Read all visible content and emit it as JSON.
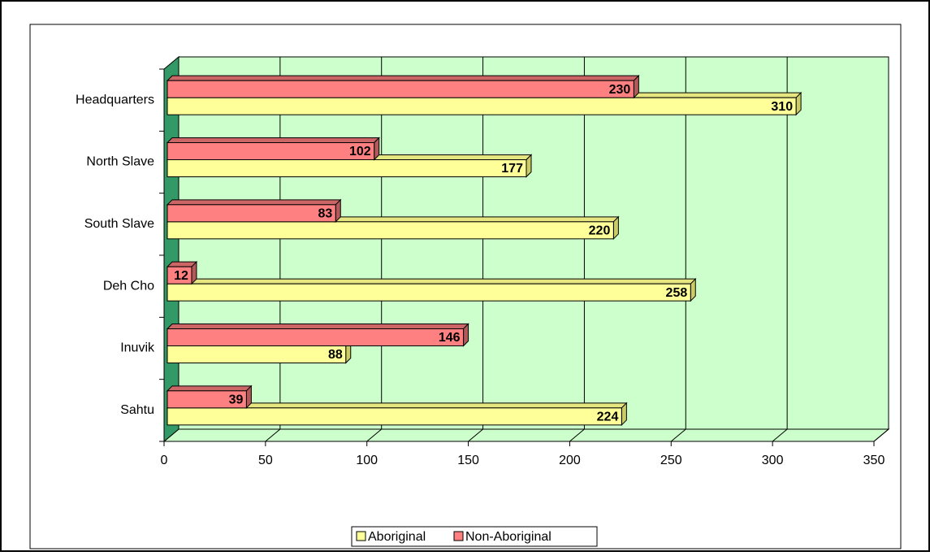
{
  "chart_data": {
    "type": "bar",
    "orientation": "horizontal",
    "categories": [
      "Headquarters",
      "North Slave",
      "South Slave",
      "Deh Cho",
      "Inuvik",
      "Sahtu"
    ],
    "series": [
      {
        "name": "Aboriginal",
        "color": "#ffff99",
        "values": [
          310,
          177,
          220,
          258,
          88,
          224
        ]
      },
      {
        "name": "Non-Aboriginal",
        "color": "#ff8080",
        "values": [
          230,
          102,
          83,
          12,
          146,
          39
        ]
      }
    ],
    "xlim": [
      0,
      350
    ],
    "xticks": [
      0,
      50,
      100,
      150,
      200,
      250,
      300,
      350
    ],
    "grid": true,
    "legend": "bottom"
  }
}
